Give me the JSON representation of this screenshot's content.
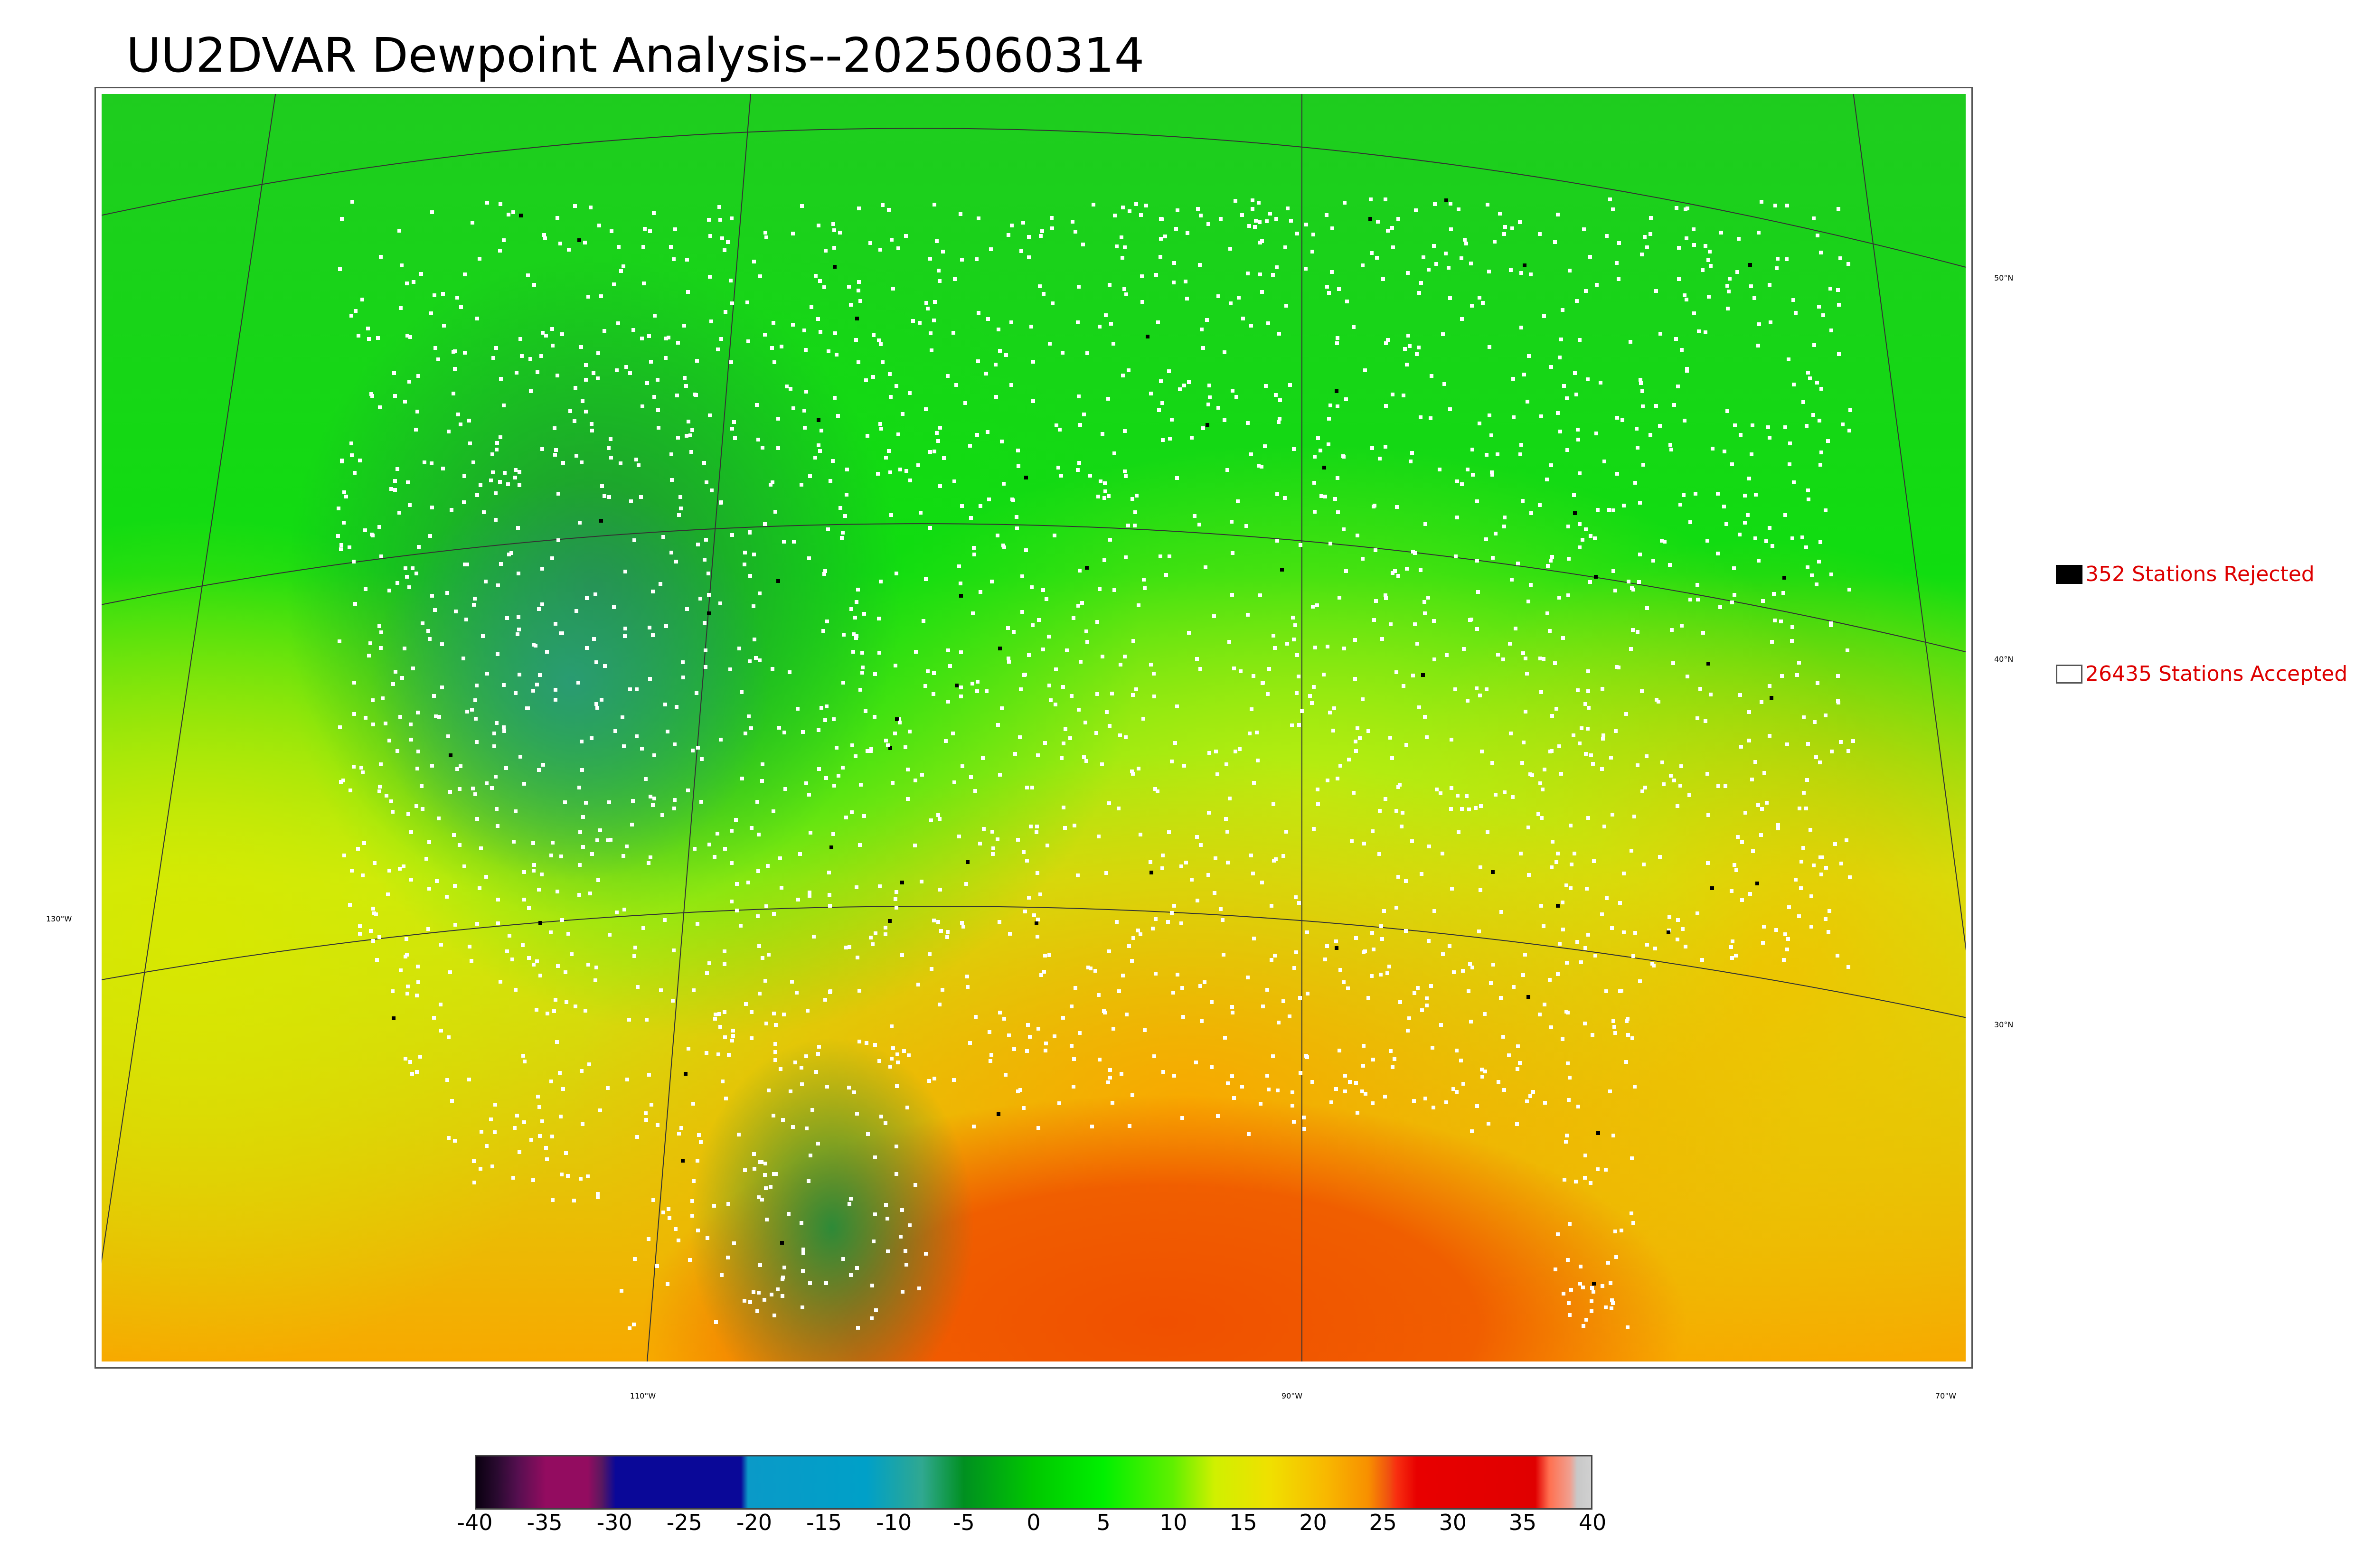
{
  "title": "UU2DVAR Dewpoint Analysis--2025060314",
  "graticule": {
    "lat_labels": [
      {
        "text": "50°N",
        "lat": 50
      },
      {
        "text": "40°N",
        "lat": 40
      },
      {
        "text": "30°N",
        "lat": 30
      }
    ],
    "lon_labels": [
      {
        "text": "130°W",
        "lon": -130
      },
      {
        "text": "110°W",
        "lon": -110
      },
      {
        "text": "90°W",
        "lon": -90
      },
      {
        "text": "70°W",
        "lon": -70
      }
    ]
  },
  "legend": {
    "rejected": {
      "label": "352 Stations Rejected",
      "swatch_color": "#000000"
    },
    "accepted": {
      "label": "26435 Stations Accepted",
      "swatch_color": "#ffffff"
    }
  },
  "colorbar": {
    "min": -40,
    "max": 40,
    "ticks": [
      "-40",
      "-35",
      "-30",
      "-25",
      "-20",
      "-15",
      "-10",
      "-5",
      "0",
      "5",
      "10",
      "15",
      "20",
      "25",
      "30",
      "35",
      "40"
    ],
    "stops": [
      {
        "value": -40,
        "color": "#0a0010"
      },
      {
        "value": -38.5,
        "color": "#2a0a30"
      },
      {
        "value": -37,
        "color": "#560f50"
      },
      {
        "value": -35,
        "color": "#930c60"
      },
      {
        "value": -32,
        "color": "#930c60"
      },
      {
        "value": -31,
        "color": "#5a1860"
      },
      {
        "value": -30,
        "color": "#0a0898"
      },
      {
        "value": -21,
        "color": "#0a0898"
      },
      {
        "value": -20.5,
        "color": "#0a9ac8"
      },
      {
        "value": -12,
        "color": "#00a0c8"
      },
      {
        "value": -8,
        "color": "#30a890"
      },
      {
        "value": -5,
        "color": "#009020"
      },
      {
        "value": 0,
        "color": "#00c800"
      },
      {
        "value": 5,
        "color": "#00f000"
      },
      {
        "value": 10,
        "color": "#60f000"
      },
      {
        "value": 13,
        "color": "#d0f000"
      },
      {
        "value": 17,
        "color": "#f0e000"
      },
      {
        "value": 21,
        "color": "#f8b800"
      },
      {
        "value": 24,
        "color": "#f89000"
      },
      {
        "value": 25.5,
        "color": "#f05010"
      },
      {
        "value": 26,
        "color": "#f83010"
      },
      {
        "value": 27.5,
        "color": "#e80000"
      },
      {
        "value": 36,
        "color": "#e00000"
      },
      {
        "value": 37,
        "color": "#ff7050"
      },
      {
        "value": 38.5,
        "color": "#f0a090"
      },
      {
        "value": 39,
        "color": "#c8c8c8"
      },
      {
        "value": 40,
        "color": "#d0d0d0"
      }
    ]
  },
  "colors": {
    "north_green": "#1fcc1f",
    "mountain_dark": "#238a3a",
    "great_basin_teal": "#2a9a7a",
    "plains_green": "#10dd10",
    "east_yellow_green": "#c8ee10",
    "south_orange": "#f8a800",
    "gulf_red": "#f05000",
    "pacific_yellow": "#d8e800",
    "atlantic_yellow": "#f2c000",
    "station_accepted": "#ffffff",
    "station_rejected": "#000000"
  }
}
